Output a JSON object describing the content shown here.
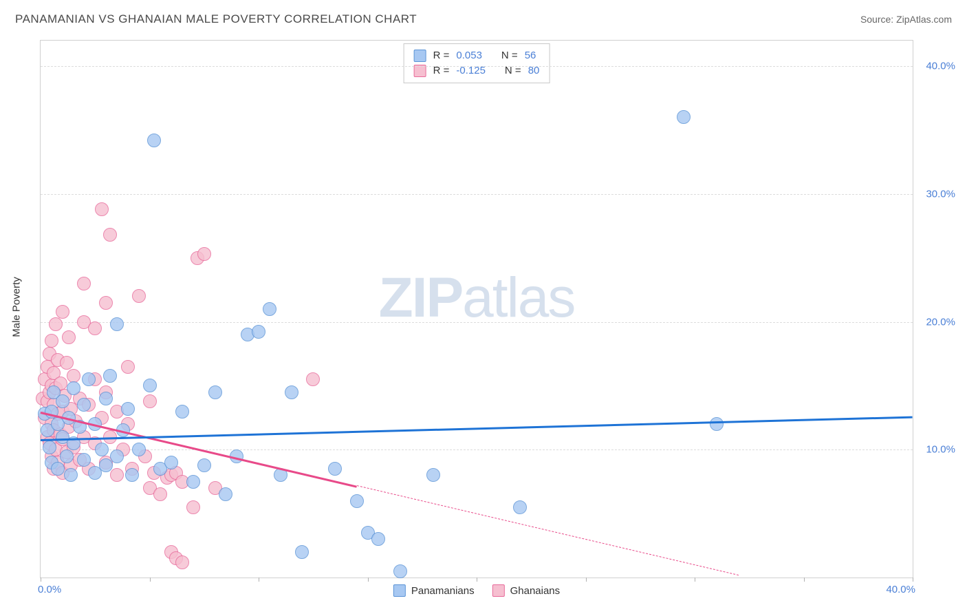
{
  "header": {
    "title": "PANAMANIAN VS GHANAIAN MALE POVERTY CORRELATION CHART",
    "source_prefix": "Source: ",
    "source_name": "ZipAtlas.com"
  },
  "chart": {
    "type": "scatter",
    "y_axis_label": "Male Poverty",
    "xlim": [
      0,
      40
    ],
    "ylim": [
      0,
      42
    ],
    "x_ticks": [
      0,
      5,
      10,
      15,
      20,
      25,
      30,
      35,
      40
    ],
    "x_tick_labels": {
      "0": "0.0%",
      "40": "40.0%"
    },
    "y_ticks": [
      10,
      20,
      30,
      40
    ],
    "y_tick_labels": [
      "10.0%",
      "20.0%",
      "30.0%",
      "40.0%"
    ],
    "grid_color": "#dcdcdc",
    "background_color": "#ffffff",
    "border_color": "#d0d0d0",
    "tick_label_color": "#4a7fd6",
    "axis_label_color": "#333333",
    "marker_radius": 10,
    "marker_border_width": 1.2,
    "marker_fill_opacity": 0.35,
    "watermark": {
      "text_bold": "ZIP",
      "text_light": "atlas",
      "color": "#d6e0ed",
      "fontsize": 82
    }
  },
  "series": {
    "panamanians": {
      "label": "Panamanians",
      "color_fill": "#a7c8f2",
      "color_border": "#5a93d6",
      "R": "0.053",
      "N": "56",
      "trend": {
        "x1": 0,
        "y1": 10.8,
        "x2": 40,
        "y2": 12.6,
        "color": "#1e73d6",
        "width": 3,
        "dash_from_x": null
      },
      "points": [
        [
          0.2,
          12.8
        ],
        [
          0.3,
          11.5
        ],
        [
          0.4,
          10.2
        ],
        [
          0.5,
          13.0
        ],
        [
          0.5,
          9.0
        ],
        [
          0.6,
          14.5
        ],
        [
          0.8,
          12.0
        ],
        [
          0.8,
          8.5
        ],
        [
          1.0,
          11.0
        ],
        [
          1.0,
          13.8
        ],
        [
          1.2,
          9.5
        ],
        [
          1.3,
          12.5
        ],
        [
          1.4,
          8.0
        ],
        [
          1.5,
          14.8
        ],
        [
          1.5,
          10.5
        ],
        [
          1.8,
          11.8
        ],
        [
          2.0,
          13.5
        ],
        [
          2.0,
          9.2
        ],
        [
          2.2,
          15.5
        ],
        [
          2.5,
          12.0
        ],
        [
          2.5,
          8.2
        ],
        [
          2.8,
          10.0
        ],
        [
          3.0,
          14.0
        ],
        [
          3.0,
          8.8
        ],
        [
          3.2,
          15.8
        ],
        [
          3.5,
          9.5
        ],
        [
          3.5,
          19.8
        ],
        [
          3.8,
          11.5
        ],
        [
          4.0,
          13.2
        ],
        [
          4.2,
          8.0
        ],
        [
          4.5,
          10.0
        ],
        [
          5.0,
          15.0
        ],
        [
          5.2,
          34.2
        ],
        [
          5.5,
          8.5
        ],
        [
          6.0,
          9.0
        ],
        [
          6.5,
          13.0
        ],
        [
          7.0,
          7.5
        ],
        [
          7.5,
          8.8
        ],
        [
          8.0,
          14.5
        ],
        [
          8.5,
          6.5
        ],
        [
          9.0,
          9.5
        ],
        [
          9.5,
          19.0
        ],
        [
          10.0,
          19.2
        ],
        [
          10.5,
          21.0
        ],
        [
          11.0,
          8.0
        ],
        [
          11.5,
          14.5
        ],
        [
          12.0,
          2.0
        ],
        [
          13.5,
          8.5
        ],
        [
          14.5,
          6.0
        ],
        [
          15.0,
          3.5
        ],
        [
          15.5,
          3.0
        ],
        [
          16.5,
          0.5
        ],
        [
          18.0,
          8.0
        ],
        [
          22.0,
          5.5
        ],
        [
          29.5,
          36.0
        ],
        [
          31.0,
          12.0
        ]
      ]
    },
    "ghanaians": {
      "label": "Ghanaians",
      "color_fill": "#f6bfd0",
      "color_border": "#e86a9a",
      "R": "-0.125",
      "N": "80",
      "trend": {
        "x1": 0,
        "y1": 13.0,
        "x2": 32,
        "y2": 0.2,
        "color": "#e84a89",
        "width": 3,
        "dash_from_x": 14.5
      },
      "points": [
        [
          0.1,
          14.0
        ],
        [
          0.2,
          12.5
        ],
        [
          0.2,
          15.5
        ],
        [
          0.3,
          11.0
        ],
        [
          0.3,
          13.8
        ],
        [
          0.3,
          16.5
        ],
        [
          0.4,
          10.5
        ],
        [
          0.4,
          14.5
        ],
        [
          0.4,
          17.5
        ],
        [
          0.5,
          9.5
        ],
        [
          0.5,
          12.0
        ],
        [
          0.5,
          15.0
        ],
        [
          0.5,
          18.5
        ],
        [
          0.6,
          8.5
        ],
        [
          0.6,
          11.5
        ],
        [
          0.6,
          13.5
        ],
        [
          0.6,
          16.0
        ],
        [
          0.7,
          10.0
        ],
        [
          0.7,
          14.8
        ],
        [
          0.7,
          19.8
        ],
        [
          0.8,
          9.0
        ],
        [
          0.8,
          12.8
        ],
        [
          0.8,
          17.0
        ],
        [
          0.9,
          11.2
        ],
        [
          0.9,
          15.2
        ],
        [
          1.0,
          8.2
        ],
        [
          1.0,
          10.8
        ],
        [
          1.0,
          13.0
        ],
        [
          1.0,
          20.8
        ],
        [
          1.1,
          14.2
        ],
        [
          1.2,
          9.8
        ],
        [
          1.2,
          16.8
        ],
        [
          1.3,
          11.8
        ],
        [
          1.3,
          18.8
        ],
        [
          1.4,
          8.8
        ],
        [
          1.4,
          13.2
        ],
        [
          1.5,
          10.2
        ],
        [
          1.5,
          15.8
        ],
        [
          1.6,
          12.2
        ],
        [
          1.8,
          9.2
        ],
        [
          1.8,
          14.0
        ],
        [
          2.0,
          11.0
        ],
        [
          2.0,
          20.0
        ],
        [
          2.0,
          23.0
        ],
        [
          2.2,
          13.5
        ],
        [
          2.2,
          8.5
        ],
        [
          2.5,
          10.5
        ],
        [
          2.5,
          15.5
        ],
        [
          2.5,
          19.5
        ],
        [
          2.8,
          12.5
        ],
        [
          2.8,
          28.8
        ],
        [
          3.0,
          9.0
        ],
        [
          3.0,
          14.5
        ],
        [
          3.0,
          21.5
        ],
        [
          3.2,
          11.0
        ],
        [
          3.2,
          26.8
        ],
        [
          3.5,
          8.0
        ],
        [
          3.5,
          13.0
        ],
        [
          3.8,
          10.0
        ],
        [
          4.0,
          12.0
        ],
        [
          4.0,
          16.5
        ],
        [
          4.2,
          8.5
        ],
        [
          4.5,
          22.0
        ],
        [
          4.8,
          9.5
        ],
        [
          5.0,
          7.0
        ],
        [
          5.0,
          13.8
        ],
        [
          5.2,
          8.2
        ],
        [
          5.5,
          6.5
        ],
        [
          5.8,
          7.8
        ],
        [
          6.0,
          2.0
        ],
        [
          6.0,
          8.0
        ],
        [
          6.2,
          1.5
        ],
        [
          6.2,
          8.2
        ],
        [
          6.5,
          1.2
        ],
        [
          6.5,
          7.5
        ],
        [
          7.0,
          5.5
        ],
        [
          7.2,
          25.0
        ],
        [
          7.5,
          25.3
        ],
        [
          8.0,
          7.0
        ],
        [
          12.5,
          15.5
        ]
      ]
    }
  },
  "stats_box": {
    "R_label": "R =",
    "N_label": "N ="
  },
  "legend_labels": {
    "panamanians": "Panamanians",
    "ghanaians": "Ghanaians"
  }
}
